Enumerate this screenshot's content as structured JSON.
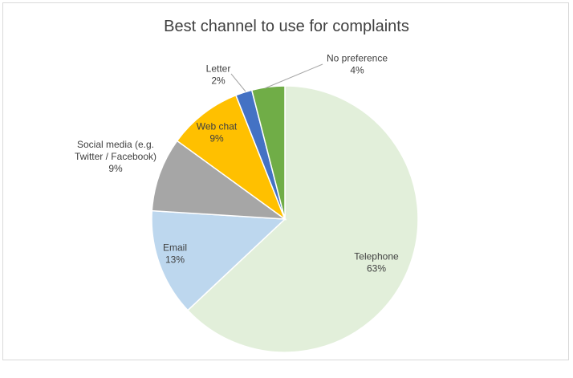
{
  "chart_data": {
    "type": "pie",
    "title": "Best channel to use for complaints",
    "slices": [
      {
        "label": "Telephone",
        "value": 63,
        "display": "63%",
        "color": "#e2efda"
      },
      {
        "label": "Email",
        "value": 13,
        "display": "13%",
        "color": "#bdd7ee"
      },
      {
        "label": "Social media (e.g. Twitter / Facebook)",
        "lines": [
          "Social media (e.g.",
          "Twitter / Facebook)"
        ],
        "value": 9,
        "display": "9%",
        "color": "#a6a6a6"
      },
      {
        "label": "Web chat",
        "value": 9,
        "display": "9%",
        "color": "#ffc000"
      },
      {
        "label": "Letter",
        "value": 2,
        "display": "2%",
        "color": "#4472c4"
      },
      {
        "label": "No preference",
        "value": 4,
        "display": "4%",
        "color": "#70ad47"
      }
    ]
  }
}
